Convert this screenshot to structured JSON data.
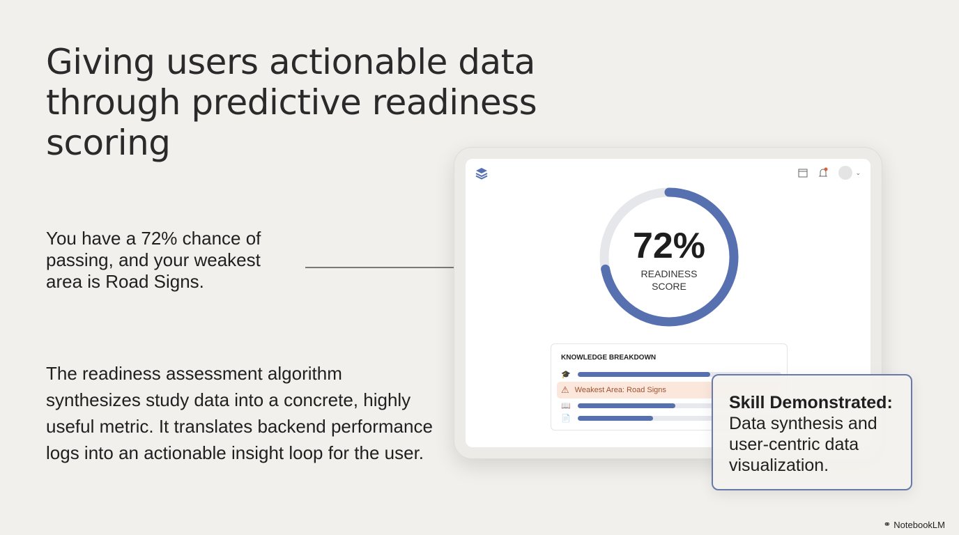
{
  "title": "Giving users actionable data through predictive readiness scoring",
  "lead": "You have a 72% chance of passing, and your weakest area is Road Signs.",
  "body": "The readiness assessment algorithm synthesizes study data into a concrete, highly useful metric. It translates backend performance logs into an actionable insight loop for the user.",
  "app": {
    "score": "72%",
    "score_fraction": 0.72,
    "score_label_1": "READINESS",
    "score_label_2": "SCORE",
    "accent": "#5670b0",
    "breakdown": {
      "title": "KNOWLEDGE BREAKDOWN",
      "weak_label": "Weakest Area: Road Signs",
      "bars": [
        {
          "icon": "graduation-cap-icon",
          "value": 0.65
        },
        {
          "icon": "book-icon",
          "value": 0.48
        },
        {
          "icon": "document-icon",
          "value": 0.37
        }
      ]
    }
  },
  "callout": {
    "heading": "Skill Demonstrated:",
    "text": "Data synthesis and user-centric data visualization."
  },
  "brand": "NotebookLM"
}
